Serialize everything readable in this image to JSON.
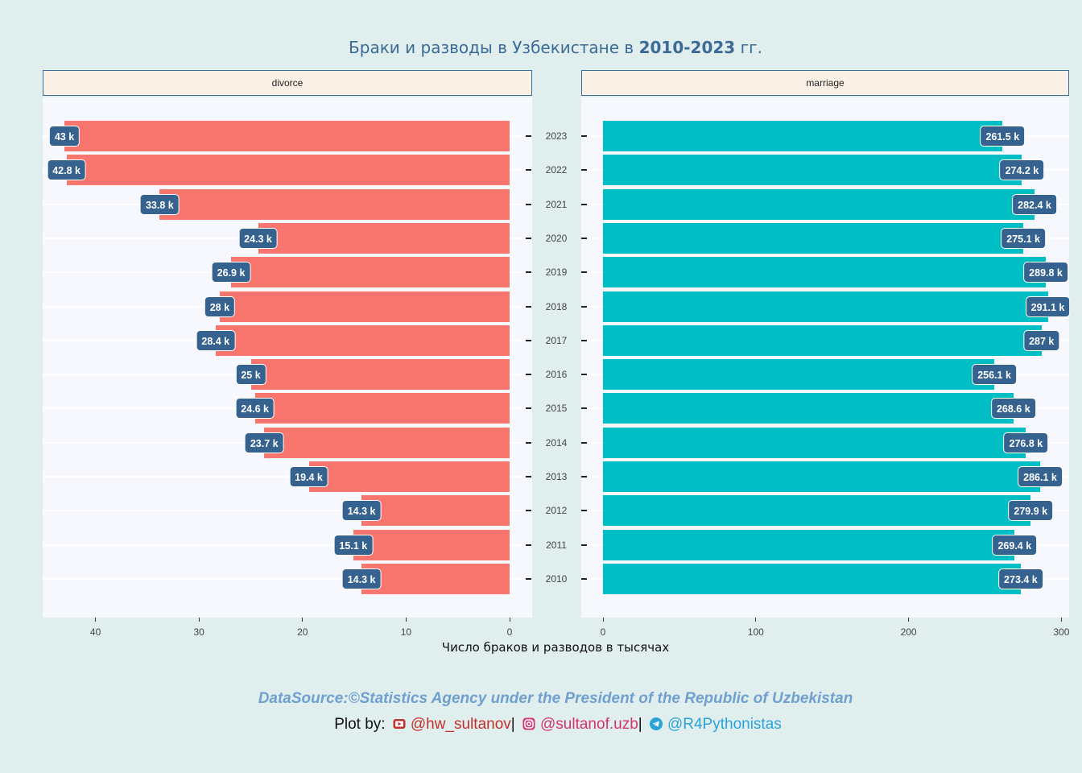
{
  "title": {
    "prefix": "Браки и разводы в Узбекистане в",
    "years": "2010-2023",
    "suffix": "гг."
  },
  "chart_data": {
    "type": "bar",
    "orientation": "horizontal",
    "categories": [
      "2023",
      "2022",
      "2021",
      "2020",
      "2019",
      "2018",
      "2017",
      "2016",
      "2015",
      "2014",
      "2013",
      "2012",
      "2011",
      "2010"
    ],
    "panels": [
      {
        "name": "divorce",
        "color": "#f8766d",
        "direction": "reversed",
        "xlim": [
          0,
          45.2
        ],
        "ticks": [
          40,
          30,
          20,
          10,
          0
        ],
        "values": [
          43.0,
          42.8,
          33.8,
          24.3,
          26.9,
          28.0,
          28.4,
          25.0,
          24.6,
          23.7,
          19.4,
          14.3,
          15.1,
          14.3
        ],
        "labels": [
          "43 k",
          "42.8 k",
          "33.8 k",
          "24.3 k",
          "26.9 k",
          "28 k",
          "28.4 k",
          "25 k",
          "24.6 k",
          "23.7 k",
          "19.4 k",
          "14.3 k",
          "15.1 k",
          "14.3 k"
        ]
      },
      {
        "name": "marriage",
        "color": "#00bfc4",
        "direction": "normal",
        "xlim": [
          0,
          305.8
        ],
        "ticks": [
          0,
          100,
          200,
          300
        ],
        "values": [
          261.5,
          274.2,
          282.4,
          275.1,
          289.8,
          291.1,
          287.0,
          256.1,
          268.6,
          276.8,
          286.1,
          279.9,
          269.4,
          273.4
        ],
        "labels": [
          "261.5 k",
          "274.2 k",
          "282.4 k",
          "275.1 k",
          "289.8 k",
          "291.1 k",
          "287 k",
          "256.1 k",
          "268.6 k",
          "276.8 k",
          "286.1 k",
          "279.9 k",
          "269.4 k",
          "273.4 k"
        ]
      }
    ],
    "xlabel": "Число браков и разводов в тысячах",
    "ylabel": "",
    "label_color": "#35628e",
    "panel_bg": "#f6f8fd",
    "strip_bg": "#faf0e6",
    "page_bg": "#e0eeed"
  },
  "caption": {
    "source": "DataSource:©Statistics Agency under the President of the Republic of Uzbekistan",
    "plot_by": "Plot by:",
    "youtube": "@hw_sultanov",
    "instagram": "@sultanof.uzb",
    "telegram": "@R4Pythonistas",
    "separator": "|"
  }
}
